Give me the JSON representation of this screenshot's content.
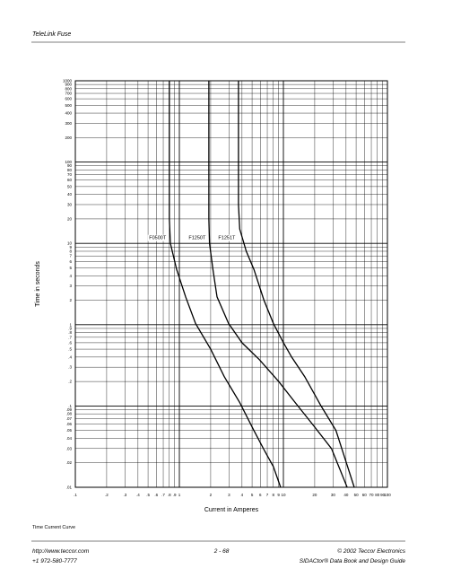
{
  "header": {
    "title": "TeleLink Fuse"
  },
  "chart_data": {
    "type": "line",
    "ylabel": "Time in seconds",
    "xlabel": "Current in Amperes",
    "xscale": "log",
    "yscale": "log",
    "grid": true,
    "xlim": [
      0.1,
      100
    ],
    "ylim": [
      0.01,
      1000
    ],
    "xticks": [
      {
        "value": 0.1,
        "label": ".1"
      },
      {
        "value": 0.2,
        "label": ".2"
      },
      {
        "value": 0.3,
        "label": ".3"
      },
      {
        "value": 0.4,
        "label": ".4"
      },
      {
        "value": 0.5,
        "label": ".5"
      },
      {
        "value": 0.6,
        "label": ".6"
      },
      {
        "value": 0.7,
        "label": ".7"
      },
      {
        "value": 0.8,
        "label": ".8"
      },
      {
        "value": 0.9,
        "label": ".9"
      },
      1,
      2,
      3,
      4,
      5,
      6,
      7,
      8,
      9,
      10,
      20,
      30,
      40,
      50,
      60,
      70,
      80,
      90,
      100
    ],
    "yticks": [
      {
        "value": 0.01,
        "label": ".01"
      },
      {
        "value": 0.02,
        "label": ".02"
      },
      {
        "value": 0.03,
        "label": ".03"
      },
      {
        "value": 0.04,
        "label": ".04"
      },
      {
        "value": 0.05,
        "label": ".05"
      },
      {
        "value": 0.06,
        "label": ".06"
      },
      {
        "value": 0.07,
        "label": ".07"
      },
      {
        "value": 0.08,
        "label": ".08"
      },
      {
        "value": 0.09,
        "label": ".09"
      },
      {
        "value": 0.1,
        "label": ".1"
      },
      {
        "value": 0.2,
        "label": ".2"
      },
      {
        "value": 0.3,
        "label": ".3"
      },
      {
        "value": 0.4,
        "label": ".4"
      },
      {
        "value": 0.5,
        "label": ".5"
      },
      {
        "value": 0.6,
        "label": ".6"
      },
      {
        "value": 0.7,
        "label": ".7"
      },
      {
        "value": 0.8,
        "label": ".8"
      },
      {
        "value": 0.9,
        "label": ".9"
      },
      1,
      2,
      3,
      4,
      5,
      6,
      7,
      8,
      9,
      10,
      20,
      30,
      40,
      50,
      60,
      70,
      80,
      90,
      100,
      200,
      300,
      400,
      500,
      600,
      700,
      800,
      900,
      1000
    ],
    "series": [
      {
        "name": "F0500T",
        "color": "#000000",
        "x": [
          0.8,
          0.8,
          0.82,
          0.94,
          1.15,
          1.43,
          2.0,
          2.7,
          3.8,
          5.2,
          6.6,
          8.0,
          9.4
        ],
        "values": [
          1000,
          20,
          10,
          4.8,
          2.2,
          1.04,
          0.5,
          0.23,
          0.11,
          0.05,
          0.028,
          0.018,
          0.01
        ]
      },
      {
        "name": "F1250T",
        "color": "#000000",
        "x": [
          1.92,
          1.92,
          1.95,
          2.1,
          2.3,
          2.97,
          4.0,
          5.9,
          9.0,
          13,
          20,
          29,
          41
        ],
        "values": [
          1000,
          20,
          10,
          4.8,
          2.2,
          1.04,
          0.6,
          0.37,
          0.2,
          0.11,
          0.055,
          0.03,
          0.01
        ]
      },
      {
        "name": "F1251T",
        "color": "#000000",
        "x": [
          3.7,
          3.7,
          3.8,
          4.4,
          5.2,
          6.5,
          8.0,
          9.8,
          12,
          16,
          23,
          32,
          48
        ],
        "values": [
          1000,
          30,
          15,
          8,
          4.8,
          2.0,
          1.04,
          0.63,
          0.4,
          0.23,
          0.1,
          0.05,
          0.01
        ]
      }
    ]
  },
  "caption": "Time Current Curve",
  "footer": {
    "url": "http://www.teccor.com",
    "phone": "+1 972-580-7777",
    "page": "2 - 68",
    "copyright": "© 2002 Teccor Electronics",
    "book": "SIDACtor® Data Book and Design Guide"
  }
}
